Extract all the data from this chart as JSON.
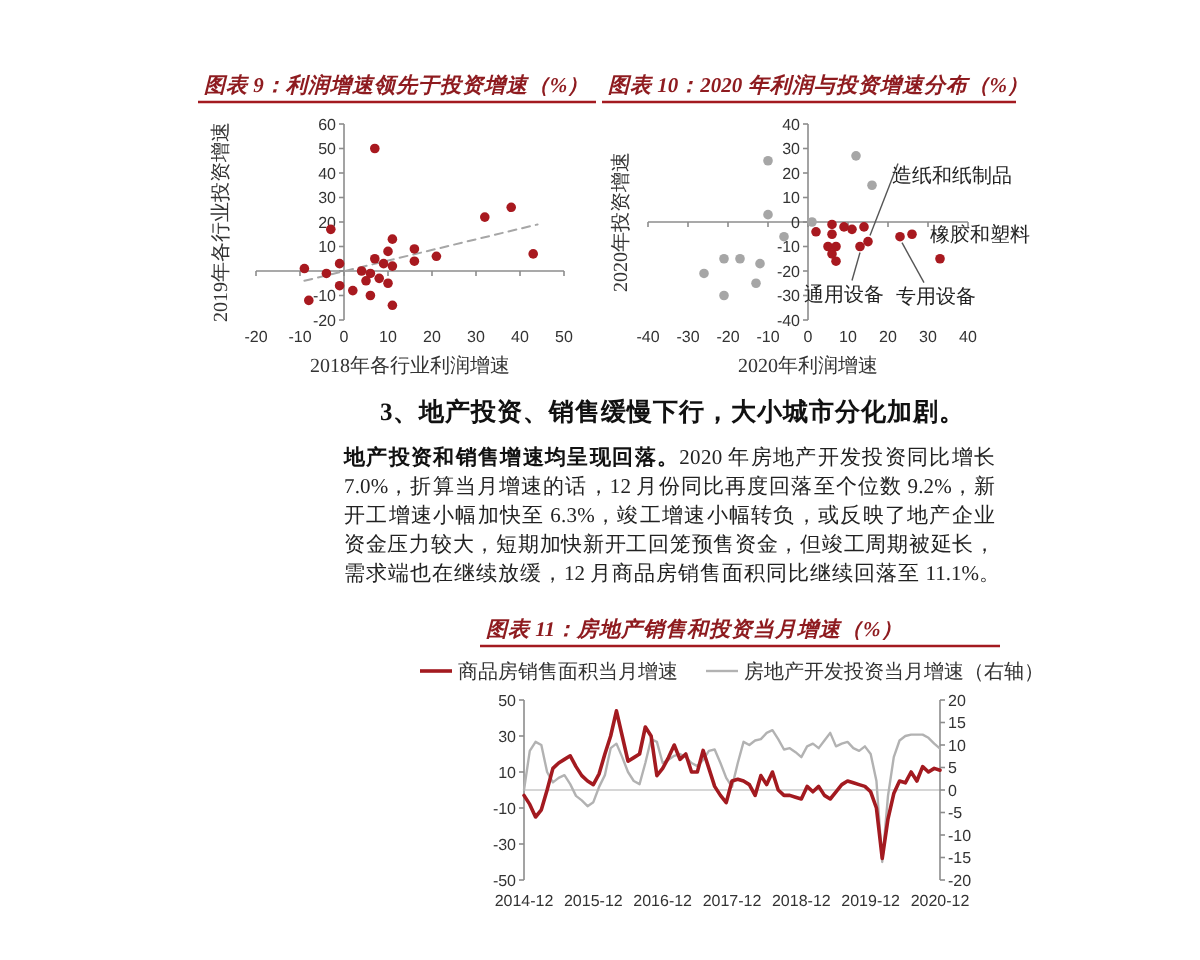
{
  "chart_data": [
    {
      "type": "scatter",
      "title": "图表 9：利润增速领先于投资增速（%）",
      "xlabel": "2018年各行业利润增速",
      "ylabel": "2019年各行业投资增速",
      "xlim": [
        -20,
        50
      ],
      "xticks": [
        -20,
        -10,
        0,
        10,
        20,
        30,
        40,
        50
      ],
      "ylim": [
        -20,
        60
      ],
      "yticks": [
        -20,
        -10,
        {
          "value": 0,
          "label": null
        },
        10,
        20,
        30,
        40,
        50,
        60
      ],
      "series": [
        {
          "color": "#a8191f",
          "marker": "circle",
          "x": [
            7,
            -3,
            32,
            38,
            43,
            21,
            16,
            16,
            11,
            10,
            11,
            9,
            7,
            -9,
            -4,
            -1,
            -8,
            -1,
            2,
            6,
            11,
            4,
            6,
            5,
            8,
            10
          ],
          "values": [
            50,
            17,
            22,
            26,
            7,
            6,
            9,
            4,
            13,
            8,
            2,
            3,
            5,
            1,
            -1,
            3,
            -12,
            -6,
            -8,
            -10,
            -14,
            0,
            -1,
            -4,
            -3,
            -5
          ]
        },
        {
          "type": "line",
          "color": "#a6a6a6",
          "line_style": "dashed",
          "x": [
            -9,
            44
          ],
          "values": [
            -4,
            19
          ]
        }
      ]
    },
    {
      "type": "scatter",
      "title": "图表 10：2020 年利润与投资增速分布（%）",
      "xlabel": "2020年利润增速",
      "ylabel": "2020年投资增速",
      "xlim": [
        -40,
        40
      ],
      "xticks": [
        -40,
        -30,
        -20,
        -10,
        0,
        10,
        20,
        30,
        40
      ],
      "ylim": [
        -40,
        40
      ],
      "yticks": [
        -40,
        -30,
        -20,
        -10,
        0,
        10,
        20,
        30,
        40
      ],
      "series": [
        {
          "color": "#a6a6a6",
          "marker": "circle",
          "x": [
            -10,
            -10,
            -6,
            1,
            12,
            16,
            -17,
            -21,
            -12,
            -26,
            -13,
            -21
          ],
          "values": [
            25,
            3,
            -6,
            0,
            27,
            15,
            -15,
            -15,
            -17,
            -21,
            -25,
            -30
          ]
        },
        {
          "color": "#a8191f",
          "marker": "circle",
          "x": [
            2,
            6,
            6,
            5,
            6,
            7,
            7,
            9,
            11,
            13,
            14,
            15,
            23,
            26,
            33
          ],
          "values": [
            -4,
            -1,
            -5,
            -10,
            -13,
            -10,
            -16,
            -2,
            -3,
            -10,
            -2,
            -8,
            -6,
            -5,
            -15
          ]
        }
      ],
      "annotations": [
        {
          "text": "造纸和纸制品",
          "x": 15,
          "y": -8
        },
        {
          "text": "橡胶和塑料",
          "x": 26,
          "y": -5
        },
        {
          "text": "通用设备",
          "x": 13,
          "y": -10
        },
        {
          "text": "专用设备",
          "x": 23,
          "y": -6
        }
      ]
    },
    {
      "type": "other",
      "title": "3、地产投资、销售缓慢下行，大小城市分化加剧。",
      "annotations": [
        "地产投资和销售增速均呈现回落。2020 年房地产开发投资同比增长 7.0%，折算当月增速的话，12 月份同比再度回落至个位数 9.2%，新开工增速小幅加快至 6.3%，竣工增速小幅转负，或反映了地产企业资金压力较大，短期加快新开工回笼预售资金，但竣工周期被延长，需求端也在继续放缓，12 月商品房销售面积同比继续回落至 11.1%。"
      ]
    },
    {
      "type": "line",
      "title": "图表 11：房地产销售和投资当月增速（%）",
      "legend": "top",
      "categories": [
        "2014-12",
        null,
        null,
        null,
        null,
        null,
        null,
        null,
        null,
        null,
        null,
        null,
        "2015-12",
        null,
        null,
        null,
        null,
        null,
        null,
        null,
        null,
        null,
        null,
        null,
        "2016-12",
        null,
        null,
        null,
        null,
        null,
        null,
        null,
        null,
        null,
        null,
        null,
        "2017-12",
        null,
        null,
        null,
        null,
        null,
        null,
        null,
        null,
        null,
        null,
        null,
        "2018-12",
        null,
        null,
        null,
        null,
        null,
        null,
        null,
        null,
        null,
        null,
        null,
        "2019-12",
        null,
        null,
        null,
        null,
        null,
        null,
        null,
        null,
        null,
        null,
        null,
        "2020-12"
      ],
      "ylim": [
        -50,
        50
      ],
      "yticks": [
        -50,
        -30,
        -10,
        10,
        30,
        50
      ],
      "y2lim": [
        -20,
        20
      ],
      "y2ticks": [
        -20,
        -15,
        -10,
        -5,
        0,
        5,
        10,
        15,
        20
      ],
      "series": [
        {
          "name": "商品房销售面积当月增速",
          "color": "#a31a20",
          "values": [
            -3,
            -8,
            -15,
            -11,
            0,
            12,
            15,
            17,
            19,
            13,
            8,
            5,
            3,
            9,
            20,
            30,
            44,
            30,
            16,
            18,
            20,
            35,
            30,
            8,
            12,
            18,
            25,
            17,
            20,
            10,
            10,
            22,
            12,
            2,
            -3,
            -7,
            5,
            6,
            5,
            3,
            -3,
            8,
            3,
            10,
            0,
            -3,
            -3,
            -4,
            -5,
            2,
            -1,
            2,
            -3,
            -5,
            -1,
            3,
            5,
            4,
            3,
            2,
            -1,
            -10,
            -38,
            -16,
            -2,
            5,
            4,
            10,
            5,
            13,
            10,
            12,
            11
          ]
        },
        {
          "name": "房地产开发投资当月增速（右轴）",
          "color": "#b2b2b2",
          "axis": "y2",
          "values": [
            0,
            8.7,
            10.7,
            10,
            4,
            1.7,
            2.7,
            3.3,
            1.3,
            -1.3,
            -2.3,
            -3.6,
            -2.7,
            0.7,
            3.3,
            9.3,
            10.3,
            7.3,
            4,
            2,
            1.3,
            6,
            11.3,
            10.7,
            6,
            6.7,
            7.6,
            8,
            7.3,
            6,
            5.3,
            6.7,
            8.7,
            9,
            6,
            2.7,
            0.7,
            6,
            10.7,
            10,
            11,
            11.3,
            12.7,
            13.3,
            11.3,
            9,
            9.3,
            8.4,
            7.3,
            9.7,
            10.3,
            9.3,
            11,
            12.7,
            9.7,
            10.3,
            10.7,
            9.3,
            8.7,
            9.7,
            8,
            2,
            -16,
            -1.3,
            7.3,
            11,
            12,
            12.3,
            12.3,
            12.3,
            11.6,
            10.3,
            9.2
          ]
        }
      ]
    }
  ]
}
